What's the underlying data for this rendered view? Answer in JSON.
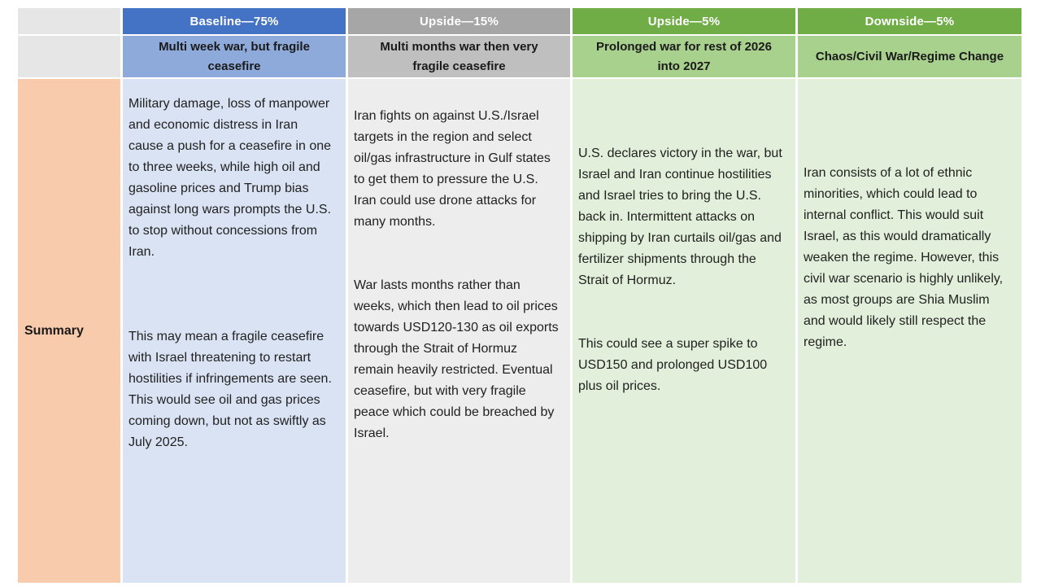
{
  "table": {
    "row_label": "Summary",
    "columns": [
      {
        "title": "Baseline—75%",
        "subtitle": "Multi week war, but fragile ceasefire",
        "summary_p1": "Military damage, loss of manpower and economic distress in Iran cause a push for a ceasefire in one to three weeks, while high oil and gasoline prices and Trump bias against long wars prompts the U.S. to stop without concessions from Iran.",
        "summary_p2": "This may mean a fragile ceasefire with Israel threatening to restart hostilities if infringements are seen. This would see oil and gas prices coming down, but not as swiftly as July 2025."
      },
      {
        "title": "Upside—15%",
        "subtitle": "Multi months war then very fragile ceasefire",
        "summary_p1": "Iran fights on against U.S./Israel targets in the region and select oil/gas infrastructure in Gulf states to get them to pressure the U.S. Iran could use drone attacks for many months.",
        "summary_p2": "War lasts months rather than weeks, which then lead to oil prices towards USD120-130 as oil exports through the Strait of Hormuz remain heavily restricted.  Eventual ceasefire, but with very fragile peace which could be breached by Israel."
      },
      {
        "title": "Upside—5%",
        "subtitle": "Prolonged war for rest of 2026 into 2027",
        "summary_p1": "U.S. declares victory in the war, but Israel and Iran continue hostilities and Israel tries to bring the U.S. back in. Intermittent attacks on shipping by Iran curtails oil/gas and fertilizer shipments through the Strait of Hormuz.",
        "summary_p2": "This could see a super spike to USD150 and prolonged USD100 plus oil prices."
      },
      {
        "title": "Downside—5%",
        "subtitle": "Chaos/Civil War/Regime Change",
        "summary_p1": "Iran consists of a lot of ethnic minorities, which could lead to internal conflict. This would suit Israel, as this would dramatically weaken the regime. However, this civil war scenario is highly unlikely, as most groups are Shia Muslim and would likely still respect the regime."
      }
    ],
    "colors": {
      "baseline_header": "#4472C4",
      "baseline_subheader": "#8EAADB",
      "baseline_body": "#DAE3F3",
      "upside15_header": "#A6A6A6",
      "upside15_subheader": "#BFBFBF",
      "upside15_body": "#EDEDED",
      "upside5_header": "#70AD47",
      "upside5_subheader": "#A9D18E",
      "upside5_body": "#E2EFDA",
      "downside_header": "#70AD47",
      "downside_subheader": "#A9D18E",
      "downside_body": "#E2EFDA",
      "label_header_bg": "#E7E6E6",
      "label_summary_bg": "#F8CBAD"
    }
  }
}
